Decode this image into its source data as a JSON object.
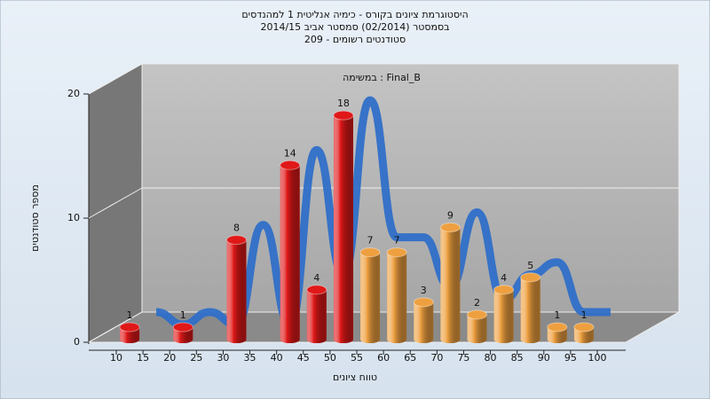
{
  "chart_data": {
    "type": "histogram",
    "title": [
      "היסטוגרמת ציונים בקורס - כימיה אנליטית 1 למהנדסים",
      "בסמסטר  (02/2014)  סמסטר אביב 2014/15",
      "סטודנטים רשומים - 209"
    ],
    "subtitle": "במשימה : Final_B",
    "x_label": "טווח ציונים",
    "y_label": "מספר סטודנטים",
    "bins": [
      10,
      15,
      20,
      25,
      30,
      35,
      40,
      45,
      50,
      55,
      60,
      65,
      70,
      75,
      80,
      85,
      90,
      95,
      100
    ],
    "values": [
      1,
      0,
      1,
      0,
      8,
      0,
      14,
      4,
      18,
      7,
      7,
      3,
      9,
      2,
      4,
      5,
      1,
      1
    ],
    "colors": [
      "#e01818",
      "#e01818",
      "#e01818",
      "#e01818",
      "#e01818",
      "#e01818",
      "#e01818",
      "#e01818",
      "#e01818",
      "#eea040",
      "#eea040",
      "#eea040",
      "#eea040",
      "#eea040",
      "#eea040",
      "#eea040",
      "#eea040",
      "#eea040"
    ],
    "trend_color": "#2f6fc8",
    "xlim": [
      10,
      100
    ],
    "xticks": [
      10,
      15,
      20,
      25,
      30,
      35,
      40,
      45,
      50,
      55,
      60,
      65,
      70,
      75,
      80,
      85,
      90,
      95,
      100
    ],
    "ylim": [
      0,
      20
    ],
    "yticks": [
      0,
      10,
      20
    ],
    "grid": true
  }
}
